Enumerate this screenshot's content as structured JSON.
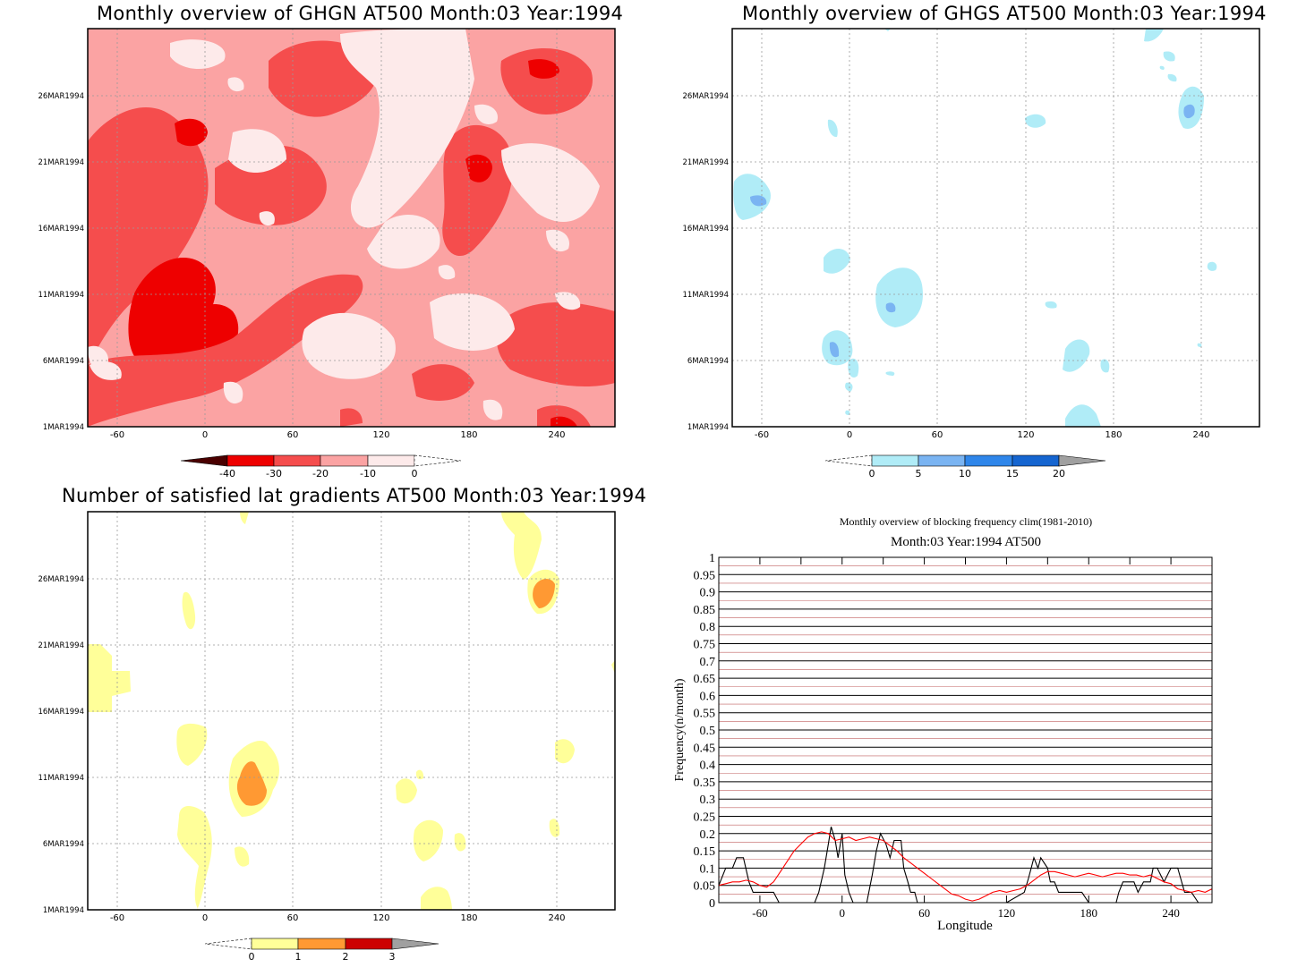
{
  "panels": {
    "ghgn": {
      "title": "Monthly overview of GHGN AT500 Month:03 Year:1994",
      "x_ticks": [
        "-60",
        "0",
        "60",
        "120",
        "180",
        "240"
      ],
      "y_ticks": [
        "1MAR1994",
        "6MAR1994",
        "11MAR1994",
        "16MAR1994",
        "21MAR1994",
        "26MAR1994"
      ],
      "colorbar_labels": [
        "-40",
        "-30",
        "-20",
        "-10",
        "0"
      ],
      "colors": [
        "#4a0000",
        "#ee0000",
        "#f54d4d",
        "#fba3a3",
        "#fdeaea"
      ]
    },
    "ghgs": {
      "title": "Monthly overview of GHGS AT500 Month:03 Year:1994",
      "x_ticks": [
        "-60",
        "0",
        "60",
        "120",
        "180",
        "240"
      ],
      "y_ticks": [
        "1MAR1994",
        "6MAR1994",
        "11MAR1994",
        "16MAR1994",
        "21MAR1994",
        "26MAR1994"
      ],
      "colorbar_labels": [
        "0",
        "5",
        "10",
        "15",
        "20"
      ],
      "colors": [
        "#b0ecf7",
        "#7ab4f2",
        "#2f86ea",
        "#1565d0",
        "#a0a0a0"
      ]
    },
    "latgrad": {
      "title": "Number of satisfied lat gradients AT500 Month:03 Year:1994",
      "x_ticks": [
        "-60",
        "0",
        "60",
        "120",
        "180",
        "240"
      ],
      "y_ticks": [
        "1MAR1994",
        "6MAR1994",
        "11MAR1994",
        "16MAR1994",
        "21MAR1994",
        "26MAR1994"
      ],
      "colorbar_labels": [
        "0",
        "1",
        "2",
        "3"
      ],
      "colors": [
        "#ffff99",
        "#ff9933",
        "#cc0000",
        "#a0a0a0"
      ]
    }
  },
  "chart_data": {
    "type": "line",
    "title": "Monthly overview of blocking frequency clim(1981-2010)",
    "subtitle": "Month:03 Year:1994  AT500",
    "xlabel": "Longitude",
    "ylabel": "Frequency(n/month)",
    "xlim": [
      -90,
      270
    ],
    "ylim": [
      0,
      1
    ],
    "x_ticks": [
      -60,
      0,
      60,
      120,
      180,
      240
    ],
    "y_ticks": [
      0,
      0.05,
      0.1,
      0.15,
      0.2,
      0.25,
      0.3,
      0.35,
      0.4,
      0.45,
      0.5,
      0.55,
      0.6,
      0.65,
      0.7,
      0.75,
      0.8,
      0.85,
      0.9,
      0.95,
      1
    ],
    "y_tick_labels": [
      "0",
      "0.05",
      "0.1",
      "0.15",
      "0.2",
      "0.25",
      "0.3",
      "0.35",
      "0.4",
      "0.45",
      "0.5",
      "0.55",
      "0.6",
      "0.65",
      "0.7",
      "0.75",
      "0.8",
      "0.85",
      "0.9",
      "0.95",
      "1"
    ],
    "x_tick_labels": [
      "-60",
      "0",
      "60",
      "120",
      "180",
      "240"
    ],
    "grid": true,
    "series": [
      {
        "color": "#000000",
        "x": [
          -90,
          -85,
          -80,
          -77,
          -72,
          -68,
          -65,
          -60,
          -55,
          -50,
          -46,
          -40,
          -35,
          -30,
          -25,
          -22,
          -20,
          -17,
          -13,
          -10,
          -8,
          -5,
          -3,
          0,
          2,
          5,
          8,
          10,
          15,
          18,
          22,
          25,
          28,
          32,
          35,
          38,
          40,
          43,
          45,
          48,
          50,
          53,
          55,
          60,
          80,
          100,
          120,
          133,
          136,
          138,
          140,
          143,
          145,
          150,
          152,
          155,
          158,
          162,
          165,
          170,
          175,
          180,
          190,
          195,
          200,
          202,
          205,
          208,
          213,
          216,
          220,
          222,
          225,
          227,
          230,
          235,
          240,
          245,
          250,
          255,
          260,
          265,
          270
        ],
        "y": [
          0.05,
          0.1,
          0.1,
          0.13,
          0.13,
          0.06,
          0.03,
          0.03,
          0.03,
          0.03,
          0,
          0,
          0,
          0,
          0,
          0,
          0,
          0.03,
          0.1,
          0.17,
          0.22,
          0.18,
          0.13,
          0.2,
          0.08,
          0.03,
          0,
          0,
          0,
          0,
          0.08,
          0.15,
          0.2,
          0.17,
          0.13,
          0.18,
          0.18,
          0.18,
          0.1,
          0.06,
          0.03,
          0.03,
          0,
          0,
          0,
          0,
          0,
          0.03,
          0.07,
          0.1,
          0.13,
          0.1,
          0.13,
          0.1,
          0.06,
          0.06,
          0.03,
          0.03,
          0.03,
          0.03,
          0.03,
          0,
          0,
          0,
          0,
          0.03,
          0.06,
          0.06,
          0.06,
          0.03,
          0.06,
          0.06,
          0.06,
          0.1,
          0.1,
          0.06,
          0.1,
          0.1,
          0.03,
          0.03,
          0,
          0,
          0
        ]
      },
      {
        "color": "#ff0000",
        "x": [
          -90,
          -85,
          -80,
          -75,
          -70,
          -65,
          -60,
          -55,
          -50,
          -45,
          -40,
          -35,
          -30,
          -25,
          -20,
          -15,
          -10,
          -5,
          0,
          5,
          10,
          15,
          20,
          25,
          30,
          35,
          40,
          45,
          50,
          55,
          60,
          65,
          70,
          75,
          80,
          85,
          90,
          95,
          100,
          105,
          110,
          115,
          120,
          125,
          130,
          135,
          140,
          145,
          150,
          155,
          160,
          165,
          170,
          175,
          180,
          185,
          190,
          195,
          200,
          205,
          210,
          215,
          220,
          225,
          230,
          235,
          240,
          245,
          250,
          255,
          260,
          265,
          270
        ],
        "y": [
          0.05,
          0.055,
          0.06,
          0.06,
          0.065,
          0.06,
          0.05,
          0.045,
          0.06,
          0.09,
          0.12,
          0.15,
          0.17,
          0.19,
          0.2,
          0.205,
          0.2,
          0.18,
          0.185,
          0.19,
          0.18,
          0.185,
          0.19,
          0.185,
          0.18,
          0.165,
          0.15,
          0.13,
          0.115,
          0.1,
          0.085,
          0.07,
          0.055,
          0.04,
          0.025,
          0.02,
          0.01,
          0.005,
          0.01,
          0.02,
          0.03,
          0.035,
          0.03,
          0.035,
          0.04,
          0.05,
          0.065,
          0.08,
          0.09,
          0.09,
          0.085,
          0.08,
          0.075,
          0.08,
          0.085,
          0.08,
          0.075,
          0.08,
          0.085,
          0.085,
          0.08,
          0.08,
          0.075,
          0.08,
          0.07,
          0.06,
          0.055,
          0.04,
          0.035,
          0.03,
          0.035,
          0.03,
          0.04
        ]
      }
    ]
  }
}
